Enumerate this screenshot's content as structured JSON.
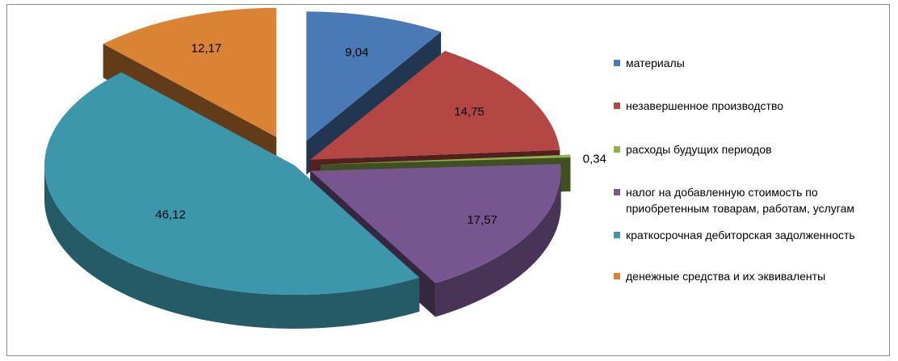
{
  "chart_data": {
    "type": "pie",
    "style": "3d-exploded",
    "title": "",
    "legend_position": "right",
    "series": [
      {
        "label": "материалы",
        "value": 9.04,
        "display": "9,04",
        "color": "#4a7ab5"
      },
      {
        "label": "незавершенное производство",
        "value": 14.75,
        "display": "14,75",
        "color": "#b44744"
      },
      {
        "label": "расходы будущих периодов",
        "value": 0.34,
        "display": "0,34",
        "color": "#8fb24a"
      },
      {
        "label": "налог на добавленную стоимость по приобретенным товарам, работам, услугам",
        "value": 17.57,
        "display": "17,57",
        "color": "#77568f"
      },
      {
        "label": "краткосрочная дебиторская задолженность",
        "value": 46.12,
        "display": "46,12",
        "color": "#3d97ab"
      },
      {
        "label": "денежные средства и их эквиваленты",
        "value": 12.17,
        "display": "12,17",
        "color": "#d98335"
      }
    ]
  }
}
